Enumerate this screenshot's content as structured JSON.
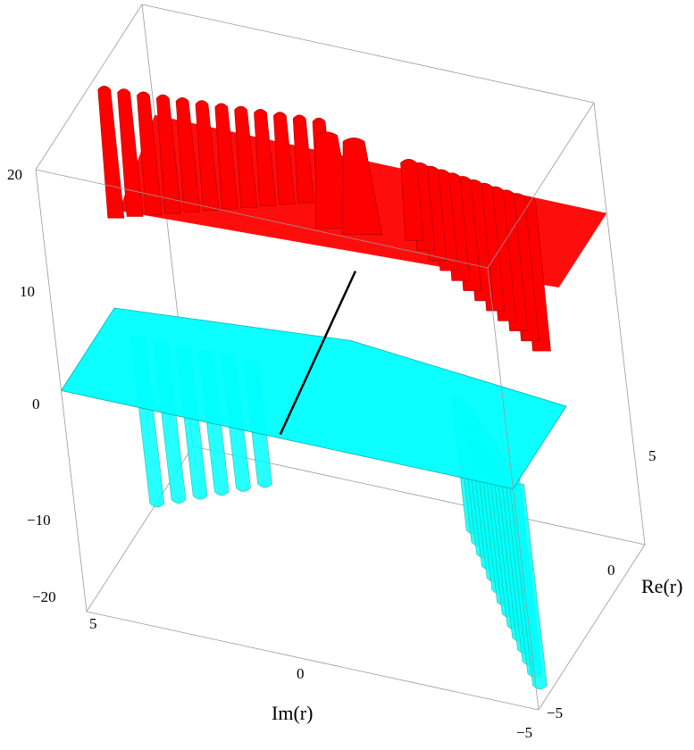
{
  "chart_data": {
    "type": "surface3d",
    "title": "",
    "xlabel": "Im(r)",
    "ylabel": "Re(r)",
    "zlabel": "",
    "xlim": [
      -5,
      5
    ],
    "ylim": [
      -5,
      5
    ],
    "zlim": [
      -20,
      20
    ],
    "x_ticks": [
      "5",
      "0",
      "−5"
    ],
    "y_ticks": [
      "5",
      "0",
      "−5"
    ],
    "z_ticks": [
      "20",
      "10",
      "0",
      "−10",
      "−20"
    ],
    "clip_high": 10,
    "clip_low": 0,
    "colors": {
      "high": "#ff0000",
      "low": "#00ffff",
      "mesh": "#80ff40",
      "mesh2": "#6040ff"
    }
  }
}
